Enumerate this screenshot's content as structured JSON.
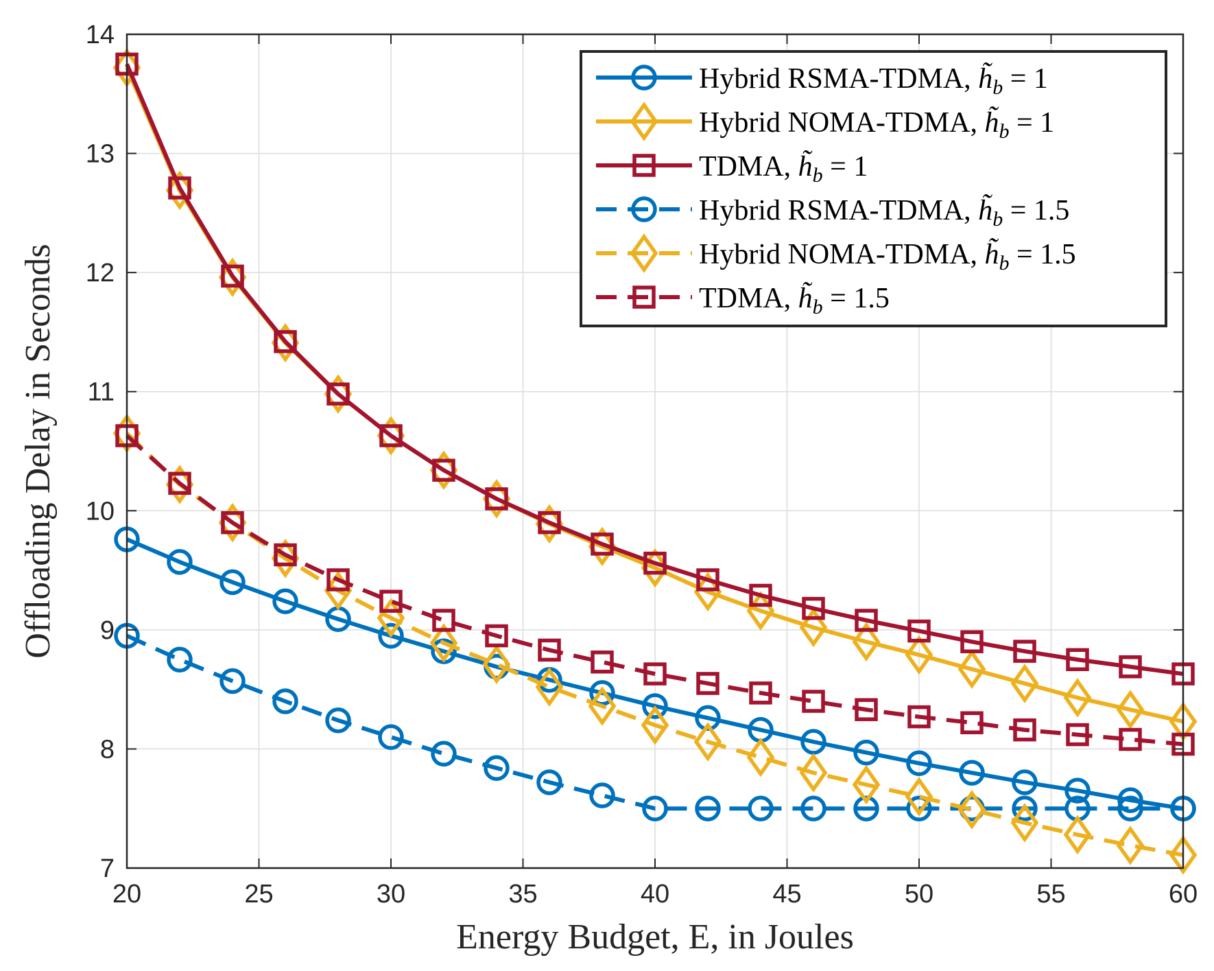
{
  "chart_data": {
    "type": "line",
    "xlabel": "Energy Budget, E, in Joules",
    "ylabel": "Offloading Delay in Seconds",
    "xlim": [
      20,
      60
    ],
    "ylim": [
      7,
      14
    ],
    "xticks": [
      20,
      25,
      30,
      35,
      40,
      45,
      50,
      55,
      60
    ],
    "yticks": [
      7,
      8,
      9,
      10,
      11,
      12,
      13,
      14
    ],
    "grid": true,
    "legend_position": "top-right",
    "x": [
      20,
      22,
      24,
      26,
      28,
      30,
      32,
      34,
      36,
      38,
      40,
      42,
      44,
      46,
      48,
      50,
      52,
      54,
      56,
      58,
      60
    ],
    "series": [
      {
        "name": "Hybrid RSMA-TDMA, h̃_b = 1",
        "legend_prefix": "Hybrid RSMA-TDMA, ",
        "legend_value": "1",
        "color": "#0072BD",
        "line_style": "solid",
        "marker": "circle",
        "values": [
          9.76,
          9.57,
          9.4,
          9.24,
          9.09,
          8.95,
          8.82,
          8.69,
          8.58,
          8.47,
          8.36,
          8.26,
          8.16,
          8.06,
          7.97,
          7.88,
          7.8,
          7.72,
          7.65,
          7.57,
          7.5
        ]
      },
      {
        "name": "Hybrid NOMA-TDMA, h̃_b = 1",
        "legend_prefix": "Hybrid NOMA-TDMA, ",
        "legend_value": "1",
        "color": "#EDB120",
        "line_style": "solid",
        "marker": "diamond",
        "values": [
          13.72,
          12.69,
          11.96,
          11.41,
          10.98,
          10.63,
          10.34,
          10.1,
          9.89,
          9.7,
          9.52,
          9.32,
          9.16,
          9.02,
          8.9,
          8.79,
          8.67,
          8.55,
          8.43,
          8.33,
          8.23
        ]
      },
      {
        "name": "TDMA, h̃_b = 1",
        "legend_prefix": "TDMA, ",
        "legend_value": "1",
        "color": "#A2142F",
        "line_style": "solid",
        "marker": "square",
        "values": [
          13.75,
          12.71,
          11.97,
          11.42,
          10.98,
          10.63,
          10.34,
          10.1,
          9.9,
          9.72,
          9.56,
          9.42,
          9.29,
          9.18,
          9.08,
          8.99,
          8.9,
          8.82,
          8.75,
          8.69,
          8.63
        ]
      },
      {
        "name": "Hybrid RSMA-TDMA, h̃_b = 1.5",
        "legend_prefix": "Hybrid RSMA-TDMA, ",
        "legend_value": "1.5",
        "color": "#0072BD",
        "line_style": "dashed",
        "marker": "circle",
        "values": [
          8.95,
          8.75,
          8.57,
          8.4,
          8.24,
          8.1,
          7.96,
          7.84,
          7.72,
          7.61,
          7.5,
          7.5,
          7.5,
          7.5,
          7.5,
          7.5,
          7.5,
          7.5,
          7.5,
          7.5,
          7.5
        ]
      },
      {
        "name": "Hybrid NOMA-TDMA, h̃_b = 1.5",
        "legend_prefix": "Hybrid NOMA-TDMA, ",
        "legend_value": "1.5",
        "color": "#EDB120",
        "line_style": "dashed",
        "marker": "diamond",
        "values": [
          10.65,
          10.22,
          9.9,
          9.6,
          9.33,
          9.1,
          8.89,
          8.71,
          8.52,
          8.36,
          8.2,
          8.06,
          7.93,
          7.8,
          7.7,
          7.6,
          7.49,
          7.38,
          7.28,
          7.19,
          7.11
        ]
      },
      {
        "name": "TDMA, h̃_b = 1.5",
        "legend_prefix": "TDMA, ",
        "legend_value": "1.5",
        "color": "#A2142F",
        "line_style": "dashed",
        "marker": "square",
        "values": [
          10.63,
          10.23,
          9.9,
          9.63,
          9.42,
          9.24,
          9.08,
          8.95,
          8.83,
          8.73,
          8.63,
          8.55,
          8.47,
          8.4,
          8.33,
          8.27,
          8.22,
          8.16,
          8.12,
          8.08,
          8.04
        ]
      }
    ]
  }
}
